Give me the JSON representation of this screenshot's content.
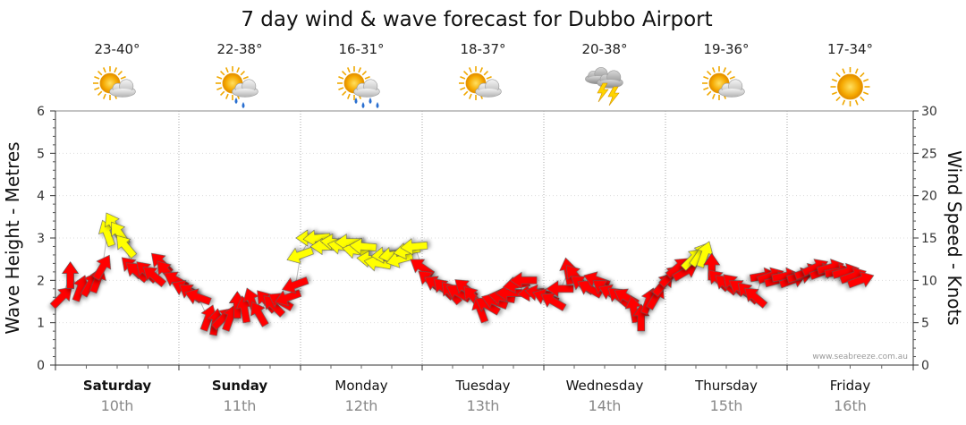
{
  "chart_data": {
    "type": "scatter",
    "title": "7 day wind & wave forecast for Dubbo Airport",
    "ylabel_left": "Wave Height - Metres",
    "ylabel_right": "Wind Speed - Knots",
    "left_ylim": [
      0,
      6
    ],
    "left_ticks": [
      "0",
      "1",
      "2",
      "3",
      "4",
      "5",
      "6"
    ],
    "right_ylim": [
      0,
      30
    ],
    "right_ticks": [
      "0",
      "5",
      "10",
      "15",
      "20",
      "25",
      "30"
    ],
    "watermark": "www.seabreeze.com.au",
    "days": [
      {
        "name": "Saturday",
        "date": "10th",
        "temp": "23-40°",
        "weather": "partly-cloudy",
        "bold": true
      },
      {
        "name": "Sunday",
        "date": "11th",
        "temp": "22-38°",
        "weather": "showers",
        "bold": true
      },
      {
        "name": "Monday",
        "date": "12th",
        "temp": "16-31°",
        "weather": "rain",
        "bold": false
      },
      {
        "name": "Tuesday",
        "date": "13th",
        "temp": "18-37°",
        "weather": "partly-cloudy",
        "bold": false
      },
      {
        "name": "Wednesday",
        "date": "14th",
        "temp": "20-38°",
        "weather": "storm",
        "bold": false
      },
      {
        "name": "Thursday",
        "date": "15th",
        "temp": "19-36°",
        "weather": "partly-cloudy",
        "bold": false
      },
      {
        "name": "Friday",
        "date": "16th",
        "temp": "17-34°",
        "weather": "sunny",
        "bold": false
      }
    ],
    "wind_legend": {
      "low_color": "#ffff00",
      "high_color": "#ff0000"
    },
    "series": [
      {
        "name": "wind",
        "unit": "knots",
        "points": [
          {
            "t": 0.05,
            "speed": 8.0,
            "dir": 225,
            "color": "red"
          },
          {
            "t": 0.12,
            "speed": 10.5,
            "dir": 180,
            "color": "red"
          },
          {
            "t": 0.2,
            "speed": 9.0,
            "dir": 200,
            "color": "red"
          },
          {
            "t": 0.28,
            "speed": 9.5,
            "dir": 210,
            "color": "red"
          },
          {
            "t": 0.34,
            "speed": 10.0,
            "dir": 200,
            "color": "red"
          },
          {
            "t": 0.38,
            "speed": 11.5,
            "dir": 210,
            "color": "red"
          },
          {
            "t": 0.42,
            "speed": 15.5,
            "dir": 160,
            "color": "yellow"
          },
          {
            "t": 0.47,
            "speed": 16.5,
            "dir": 150,
            "color": "yellow"
          },
          {
            "t": 0.52,
            "speed": 15.5,
            "dir": 145,
            "color": "yellow"
          },
          {
            "t": 0.57,
            "speed": 14.0,
            "dir": 140,
            "color": "yellow"
          },
          {
            "t": 0.62,
            "speed": 11.5,
            "dir": 135,
            "color": "red"
          },
          {
            "t": 0.66,
            "speed": 11.0,
            "dir": 130,
            "color": "red"
          },
          {
            "t": 0.74,
            "speed": 11.0,
            "dir": 135,
            "color": "red"
          },
          {
            "t": 0.8,
            "speed": 10.5,
            "dir": 130,
            "color": "red"
          },
          {
            "t": 0.86,
            "speed": 12.0,
            "dir": 135,
            "color": "red"
          },
          {
            "t": 0.9,
            "speed": 11.0,
            "dir": 140,
            "color": "red"
          },
          {
            "t": 0.98,
            "speed": 10.0,
            "dir": 120,
            "color": "red"
          },
          {
            "t": 1.05,
            "speed": 9.0,
            "dir": 115,
            "color": "red"
          },
          {
            "t": 1.1,
            "speed": 8.5,
            "dir": 125,
            "color": "red"
          },
          {
            "t": 1.16,
            "speed": 8.0,
            "dir": 110,
            "color": "red"
          },
          {
            "t": 1.24,
            "speed": 5.5,
            "dir": 200,
            "color": "red"
          },
          {
            "t": 1.3,
            "speed": 5.0,
            "dir": 190,
            "color": "red"
          },
          {
            "t": 1.36,
            "speed": 5.5,
            "dir": 225,
            "color": "red"
          },
          {
            "t": 1.42,
            "speed": 5.5,
            "dir": 200,
            "color": "red"
          },
          {
            "t": 1.48,
            "speed": 7.0,
            "dir": 180,
            "color": "red"
          },
          {
            "t": 1.54,
            "speed": 6.5,
            "dir": 170,
            "color": "red"
          },
          {
            "t": 1.6,
            "speed": 7.5,
            "dir": 160,
            "color": "red"
          },
          {
            "t": 1.66,
            "speed": 6.0,
            "dir": 150,
            "color": "red"
          },
          {
            "t": 1.72,
            "speed": 7.5,
            "dir": 140,
            "color": "red"
          },
          {
            "t": 1.78,
            "speed": 7.0,
            "dir": 135,
            "color": "red"
          },
          {
            "t": 1.84,
            "speed": 7.5,
            "dir": 120,
            "color": "red"
          },
          {
            "t": 1.9,
            "speed": 8.0,
            "dir": 70,
            "color": "red"
          },
          {
            "t": 1.96,
            "speed": 9.5,
            "dir": 70,
            "color": "red"
          },
          {
            "t": 2.0,
            "speed": 13.0,
            "dir": 70,
            "color": "yellow"
          },
          {
            "t": 2.08,
            "speed": 15.0,
            "dir": 90,
            "color": "yellow"
          },
          {
            "t": 2.14,
            "speed": 15.0,
            "dir": 85,
            "color": "yellow"
          },
          {
            "t": 2.2,
            "speed": 14.0,
            "dir": 90,
            "color": "yellow"
          },
          {
            "t": 2.28,
            "speed": 14.5,
            "dir": 95,
            "color": "yellow"
          },
          {
            "t": 2.34,
            "speed": 14.0,
            "dir": 100,
            "color": "yellow"
          },
          {
            "t": 2.4,
            "speed": 14.5,
            "dir": 90,
            "color": "yellow"
          },
          {
            "t": 2.46,
            "speed": 13.5,
            "dir": 100,
            "color": "yellow"
          },
          {
            "t": 2.52,
            "speed": 14.0,
            "dir": 95,
            "color": "yellow"
          },
          {
            "t": 2.58,
            "speed": 12.5,
            "dir": 95,
            "color": "yellow"
          },
          {
            "t": 2.64,
            "speed": 12.0,
            "dir": 100,
            "color": "yellow"
          },
          {
            "t": 2.7,
            "speed": 13.0,
            "dir": 85,
            "color": "yellow"
          },
          {
            "t": 2.76,
            "speed": 13.0,
            "dir": 80,
            "color": "yellow"
          },
          {
            "t": 2.82,
            "speed": 12.5,
            "dir": 75,
            "color": "yellow"
          },
          {
            "t": 2.88,
            "speed": 13.5,
            "dir": 80,
            "color": "yellow"
          },
          {
            "t": 2.94,
            "speed": 14.0,
            "dir": 85,
            "color": "yellow"
          },
          {
            "t": 3.0,
            "speed": 11.5,
            "dir": 125,
            "color": "red"
          },
          {
            "t": 3.06,
            "speed": 10.0,
            "dir": 130,
            "color": "red"
          },
          {
            "t": 3.12,
            "speed": 9.5,
            "dir": 120,
            "color": "red"
          },
          {
            "t": 3.18,
            "speed": 9.0,
            "dir": 135,
            "color": "red"
          },
          {
            "t": 3.24,
            "speed": 8.5,
            "dir": 140,
            "color": "red"
          },
          {
            "t": 3.3,
            "speed": 8.5,
            "dir": 120,
            "color": "red"
          },
          {
            "t": 3.36,
            "speed": 9.0,
            "dir": 130,
            "color": "red"
          },
          {
            "t": 3.42,
            "speed": 8.0,
            "dir": 140,
            "color": "red"
          },
          {
            "t": 3.48,
            "speed": 6.5,
            "dir": 160,
            "color": "red"
          },
          {
            "t": 3.54,
            "speed": 7.0,
            "dir": 120,
            "color": "red"
          },
          {
            "t": 3.6,
            "speed": 7.5,
            "dir": 110,
            "color": "red"
          },
          {
            "t": 3.66,
            "speed": 8.0,
            "dir": 100,
            "color": "red"
          },
          {
            "t": 3.72,
            "speed": 8.5,
            "dir": 90,
            "color": "red"
          },
          {
            "t": 3.78,
            "speed": 9.5,
            "dir": 80,
            "color": "red"
          },
          {
            "t": 3.84,
            "speed": 10.0,
            "dir": 90,
            "color": "red"
          },
          {
            "t": 3.9,
            "speed": 8.5,
            "dir": 85,
            "color": "red"
          },
          {
            "t": 3.96,
            "speed": 8.5,
            "dir": 100,
            "color": "red"
          },
          {
            "t": 4.02,
            "speed": 8.0,
            "dir": 110,
            "color": "red"
          },
          {
            "t": 4.08,
            "speed": 7.5,
            "dir": 120,
            "color": "red"
          },
          {
            "t": 4.14,
            "speed": 9.0,
            "dir": 90,
            "color": "red"
          },
          {
            "t": 4.2,
            "speed": 11.0,
            "dir": 170,
            "color": "red"
          },
          {
            "t": 4.26,
            "speed": 10.5,
            "dir": 140,
            "color": "red"
          },
          {
            "t": 4.32,
            "speed": 9.5,
            "dir": 125,
            "color": "red"
          },
          {
            "t": 4.38,
            "speed": 9.0,
            "dir": 120,
            "color": "red"
          },
          {
            "t": 4.44,
            "speed": 10.0,
            "dir": 110,
            "color": "red"
          },
          {
            "t": 4.5,
            "speed": 9.0,
            "dir": 125,
            "color": "red"
          },
          {
            "t": 4.56,
            "speed": 8.5,
            "dir": 115,
            "color": "red"
          },
          {
            "t": 4.62,
            "speed": 8.0,
            "dir": 130,
            "color": "red"
          },
          {
            "t": 4.68,
            "speed": 8.0,
            "dir": 120,
            "color": "red"
          },
          {
            "t": 4.74,
            "speed": 6.5,
            "dir": 170,
            "color": "red"
          },
          {
            "t": 4.8,
            "speed": 5.5,
            "dir": 180,
            "color": "red"
          },
          {
            "t": 4.86,
            "speed": 7.5,
            "dir": 200,
            "color": "red"
          },
          {
            "t": 4.92,
            "speed": 8.0,
            "dir": 210,
            "color": "red"
          },
          {
            "t": 4.98,
            "speed": 9.5,
            "dir": 220,
            "color": "red"
          },
          {
            "t": 5.04,
            "speed": 10.5,
            "dir": 225,
            "color": "red"
          },
          {
            "t": 5.1,
            "speed": 11.5,
            "dir": 230,
            "color": "red"
          },
          {
            "t": 5.16,
            "speed": 11.0,
            "dir": 240,
            "color": "red"
          },
          {
            "t": 5.22,
            "speed": 12.5,
            "dir": 225,
            "color": "yellow"
          },
          {
            "t": 5.28,
            "speed": 13.0,
            "dir": 215,
            "color": "yellow"
          },
          {
            "t": 5.32,
            "speed": 13.0,
            "dir": 200,
            "color": "yellow"
          },
          {
            "t": 5.38,
            "speed": 11.5,
            "dir": 180,
            "color": "red"
          },
          {
            "t": 5.44,
            "speed": 10.0,
            "dir": 135,
            "color": "red"
          },
          {
            "t": 5.5,
            "speed": 9.5,
            "dir": 130,
            "color": "red"
          },
          {
            "t": 5.56,
            "speed": 9.5,
            "dir": 135,
            "color": "red"
          },
          {
            "t": 5.62,
            "speed": 9.0,
            "dir": 125,
            "color": "red"
          },
          {
            "t": 5.68,
            "speed": 8.5,
            "dir": 135,
            "color": "red"
          },
          {
            "t": 5.74,
            "speed": 8.0,
            "dir": 130,
            "color": "red"
          },
          {
            "t": 5.8,
            "speed": 10.5,
            "dir": 260,
            "color": "red"
          },
          {
            "t": 5.86,
            "speed": 10.5,
            "dir": 250,
            "color": "red"
          },
          {
            "t": 5.92,
            "speed": 10.0,
            "dir": 255,
            "color": "red"
          },
          {
            "t": 5.98,
            "speed": 10.5,
            "dir": 260,
            "color": "red"
          },
          {
            "t": 6.04,
            "speed": 10.0,
            "dir": 250,
            "color": "red"
          },
          {
            "t": 6.1,
            "speed": 10.5,
            "dir": 255,
            "color": "red"
          },
          {
            "t": 6.16,
            "speed": 11.0,
            "dir": 250,
            "color": "red"
          },
          {
            "t": 6.22,
            "speed": 11.5,
            "dir": 245,
            "color": "red"
          },
          {
            "t": 6.28,
            "speed": 11.0,
            "dir": 250,
            "color": "red"
          },
          {
            "t": 6.34,
            "speed": 11.5,
            "dir": 255,
            "color": "red"
          },
          {
            "t": 6.4,
            "speed": 11.0,
            "dir": 260,
            "color": "red"
          },
          {
            "t": 6.46,
            "speed": 11.0,
            "dir": 255,
            "color": "red"
          },
          {
            "t": 6.52,
            "speed": 10.5,
            "dir": 250,
            "color": "red"
          },
          {
            "t": 6.58,
            "speed": 10.0,
            "dir": 250,
            "color": "red"
          }
        ]
      }
    ]
  }
}
